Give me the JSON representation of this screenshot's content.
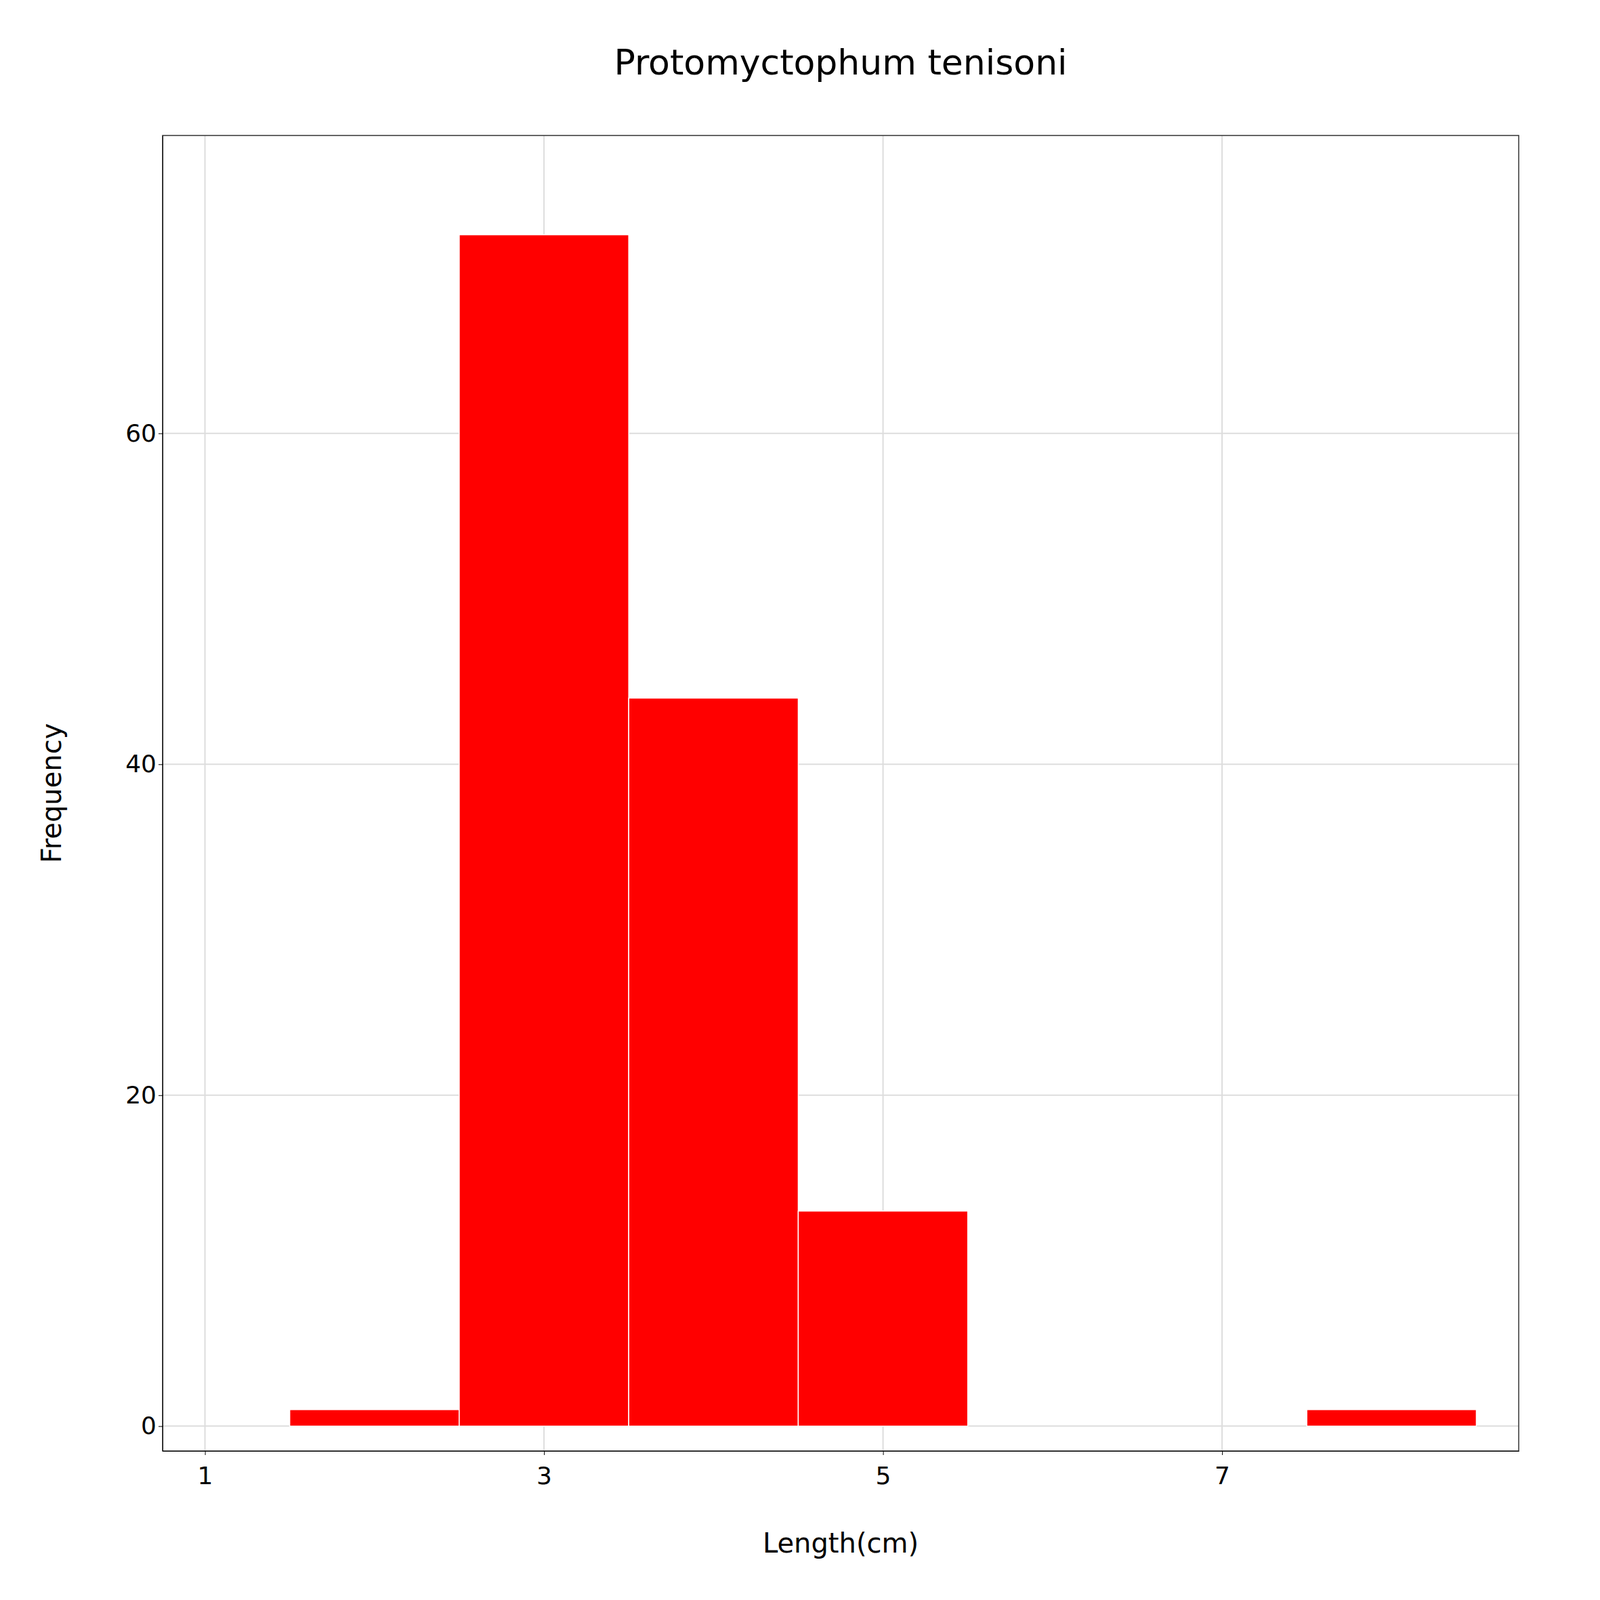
{
  "chart_data": {
    "type": "bar",
    "title": "Protomyctophum tenisoni",
    "x_label": "Length(cm)",
    "y_label": "Frequency",
    "x": [
      2,
      3,
      4,
      5,
      8
    ],
    "values": [
      1,
      72,
      44,
      13,
      1
    ],
    "color": "#FF0000",
    "xlim": [
      0.75,
      8.75
    ],
    "xticks": [
      1,
      3,
      5,
      7
    ],
    "ylim": [
      -1.5,
      78
    ],
    "yticks": [
      0,
      20,
      40,
      60
    ],
    "grid": true
  }
}
